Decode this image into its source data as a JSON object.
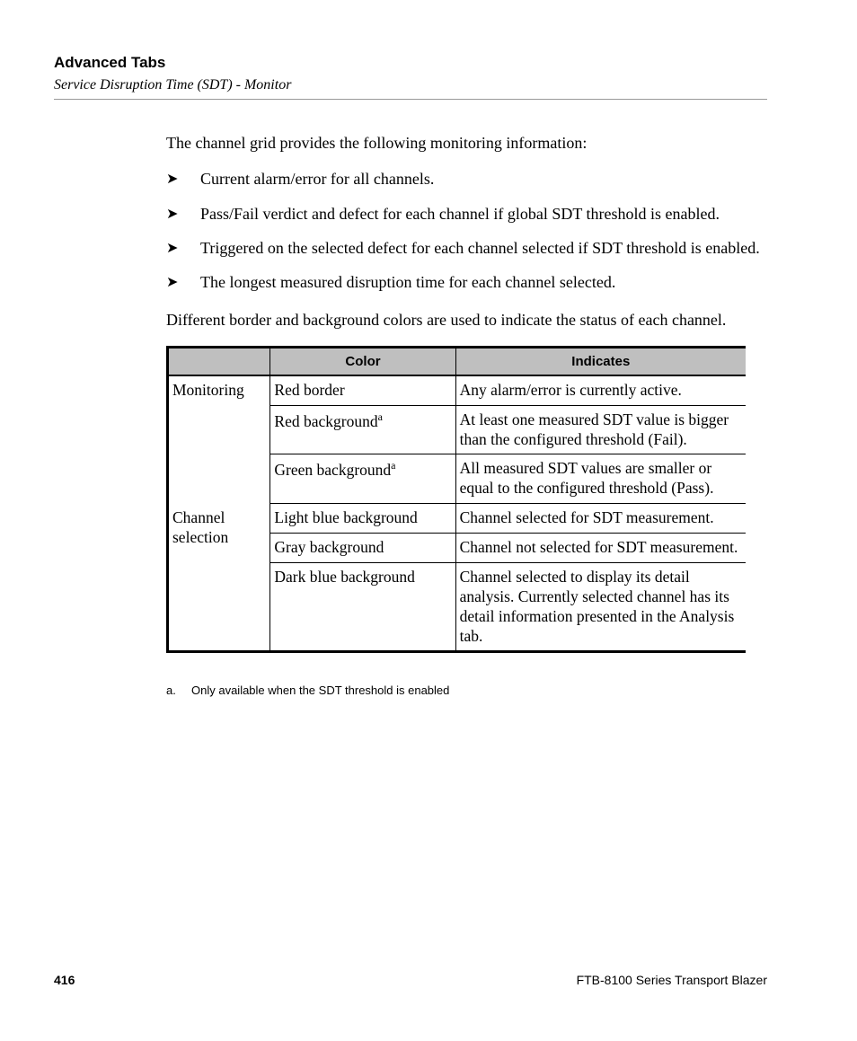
{
  "header": {
    "title": "Advanced Tabs",
    "subtitle": "Service Disruption Time (SDT) - Monitor"
  },
  "intro": "The channel grid provides the following monitoring information:",
  "bullets": [
    "Current alarm/error for all channels.",
    "Pass/Fail verdict and defect for each channel if global SDT threshold is enabled.",
    "Triggered on the selected defect for each channel selected if SDT threshold is enabled.",
    "The longest measured disruption time for each channel selected."
  ],
  "para_after": "Different border and background colors are used to indicate the status of each channel.",
  "table": {
    "columns": [
      "",
      "Color",
      "Indicates"
    ],
    "rows": [
      {
        "group": "Monitoring",
        "color": "Red border",
        "note": "",
        "indicates": "Any alarm/error is currently active."
      },
      {
        "group": "",
        "color": "Red background",
        "note": "a",
        "indicates": "At least one measured SDT value is bigger than the configured threshold (Fail)."
      },
      {
        "group": "",
        "color": "Green background",
        "note": "a",
        "indicates": "All measured SDT values are smaller or equal to the configured threshold (Pass)."
      },
      {
        "group": "Channel selection",
        "color": "Light blue background",
        "note": "",
        "indicates": "Channel selected for SDT measurement."
      },
      {
        "group": "",
        "color": "Gray background",
        "note": "",
        "indicates": "Channel not selected for SDT measurement."
      },
      {
        "group": "",
        "color": "Dark blue background",
        "note": "",
        "indicates": "Channel selected to display its detail analysis. Currently selected channel has its detail information presented in the Analysis tab."
      }
    ]
  },
  "footnote": {
    "label": "a.",
    "text": "Only available when the SDT threshold is enabled"
  },
  "footer": {
    "page": "416",
    "doc": "FTB-8100 Series Transport Blazer"
  }
}
